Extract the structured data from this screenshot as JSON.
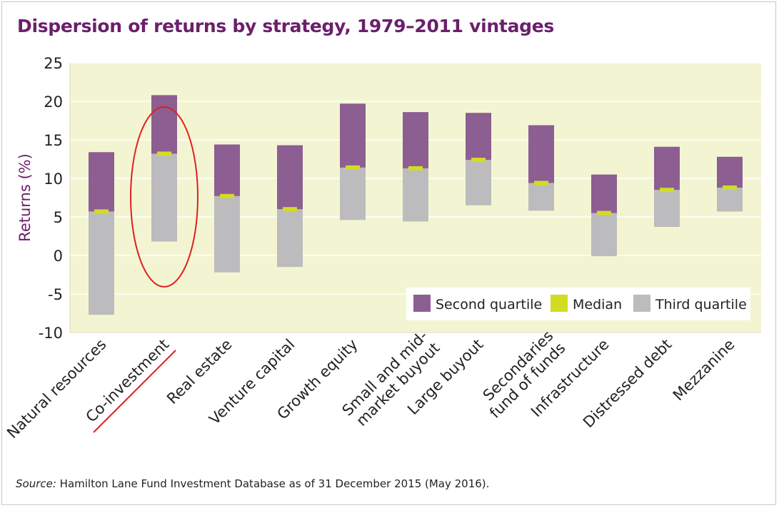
{
  "title": "Dispersion of returns by strategy, 1979–2011 vintages",
  "source": {
    "prefix": "Source:",
    "text": " Hamilton Lane Fund Investment Database as of 31 December 2015 (May 2016)."
  },
  "colors": {
    "plot_background": "#f3f5d2",
    "second_quartile": "#8c5e92",
    "median": "#d2dc23",
    "third_quartile": "#bcbcbe",
    "title": "#6b1f6b",
    "highlight": "#e02020"
  },
  "chart_data": {
    "type": "bar",
    "ylabel": "Returns (%)",
    "ylim": [
      -10,
      25
    ],
    "yticks": [
      25,
      20,
      15,
      10,
      5,
      0,
      -5,
      -10
    ],
    "categories": [
      "Natural resources",
      "Co-investment",
      "Real estate",
      "Venture capital",
      "Growth equity",
      "Small and mid-market buyout",
      "Large buyout",
      "Secondaries fund of funds",
      "Infrastructure",
      "Distressed debt",
      "Mezzanine"
    ],
    "category_lines": [
      [
        "Natural resources"
      ],
      [
        "Co-investment"
      ],
      [
        "Real estate"
      ],
      [
        "Venture capital"
      ],
      [
        "Growth equity"
      ],
      [
        "Small and mid-",
        "market buyout"
      ],
      [
        "Large buyout"
      ],
      [
        "Secondaries",
        "fund of funds"
      ],
      [
        "Infrastructure"
      ],
      [
        "Distressed debt"
      ],
      [
        "Mezzanine"
      ]
    ],
    "series": [
      {
        "name": "Second quartile",
        "low": [
          5.7,
          13.2,
          7.7,
          6.0,
          11.4,
          11.3,
          12.4,
          9.4,
          5.5,
          8.5,
          8.8
        ],
        "high": [
          13.4,
          20.8,
          14.4,
          14.3,
          19.7,
          18.6,
          18.5,
          16.9,
          10.5,
          14.1,
          12.8
        ]
      },
      {
        "name": "Median",
        "values": [
          5.7,
          13.2,
          7.7,
          6.0,
          11.4,
          11.3,
          12.4,
          9.4,
          5.5,
          8.5,
          8.8
        ]
      },
      {
        "name": "Third quartile",
        "low": [
          -7.7,
          1.8,
          -2.2,
          -1.5,
          4.6,
          4.4,
          6.5,
          5.8,
          -0.1,
          3.7,
          5.7
        ],
        "high": [
          5.7,
          13.2,
          7.7,
          6.0,
          11.4,
          11.3,
          12.4,
          9.4,
          5.5,
          8.5,
          8.8
        ]
      }
    ],
    "legend": {
      "position": "bottom-right",
      "items": [
        "Second quartile",
        "Median",
        "Third quartile"
      ]
    },
    "highlight_category": "Co-investment"
  }
}
